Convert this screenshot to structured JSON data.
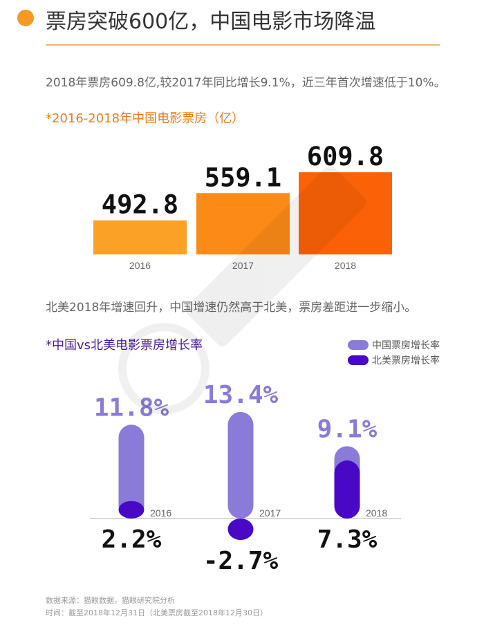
{
  "header": {
    "title": "票房突破600亿，中国电影市场降温"
  },
  "paragraphs": {
    "p1": "2018年票房609.8亿,较2017年同比增长9.1%，近三年首次增速低于10%。",
    "p2": "北美2018年增速回升，中国增速仍然高于北美，票房差距进一步缩小。"
  },
  "chart_titles": {
    "box_office": "*2016-2018年中国电影票房（亿）",
    "growth": "*中国vs北美电影票房增长率"
  },
  "legend": {
    "china": "中国票房增长率",
    "na": "北美票房增长率"
  },
  "footer": {
    "source": "数据来源：猫眼数据，猫眼研究院分析",
    "time": "时间：截至2018年12月31日（北美票房截至2018年12月30日）"
  },
  "colors": {
    "accent_orange": "#f59a23",
    "bar_2016": "#fba125",
    "bar_2017": "#fb8a17",
    "bar_2018": "#fb6208",
    "china_growth": "#8a7bd8",
    "na_growth": "#4808c5"
  },
  "chart_data": [
    {
      "type": "bar",
      "title": "*2016-2018年中国电影票房（亿）",
      "categories": [
        "2016",
        "2017",
        "2018"
      ],
      "values": [
        492.8,
        559.1,
        609.8
      ],
      "value_labels": [
        "492.8",
        "559.1",
        "609.8"
      ]
    },
    {
      "type": "bar",
      "title": "*中国vs北美电影票房增长率",
      "categories": [
        "2016",
        "2017",
        "2018"
      ],
      "series": [
        {
          "name": "中国票房增长率",
          "values": [
            11.8,
            13.4,
            9.1
          ],
          "labels": [
            "11.8%",
            "13.4%",
            "9.1%"
          ]
        },
        {
          "name": "北美票房增长率",
          "values": [
            2.2,
            -2.7,
            7.3
          ],
          "labels": [
            "2.2%",
            "-2.7%",
            "7.3%"
          ]
        }
      ]
    }
  ]
}
